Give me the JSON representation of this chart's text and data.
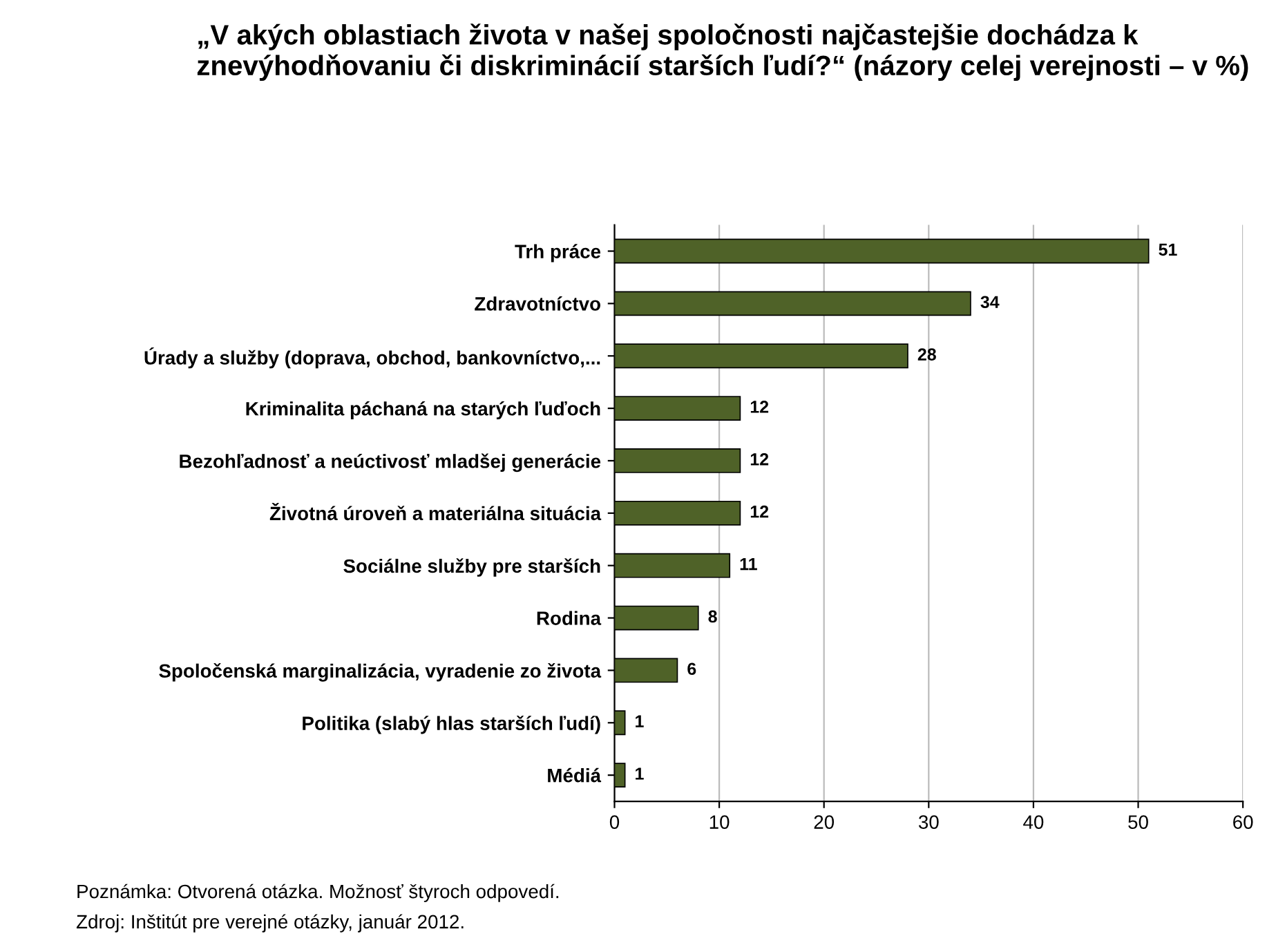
{
  "chart_data": {
    "type": "bar",
    "orientation": "horizontal",
    "title": "„V akých oblastiach života v našej spoločnosti najčastejšie dochádza k znevýhodňovaniu či diskriminácií starších ľudí?“ (názory celej verejnosti – v %)",
    "categories": [
      "Trh práce",
      "Zdravotníctvo",
      "Úrady a služby (doprava, obchod, bankovníctvo,...",
      "Kriminalita páchaná na starých ľuďoch",
      "Bezohľadnosť a neúctivosť mladšej generácie",
      "Životná úroveň a materiálna situácia",
      "Sociálne služby pre starších",
      "Rodina",
      "Spoločenská marginalizácia, vyradenie zo života",
      "Politika (slabý hlas starších ľudí)",
      "Médiá"
    ],
    "values": [
      51,
      34,
      28,
      12,
      12,
      12,
      11,
      8,
      6,
      1,
      1
    ],
    "color": "#4f6228",
    "xlim": [
      0,
      60
    ],
    "xticks": [
      0,
      10,
      20,
      30,
      40,
      50,
      60
    ],
    "grid": "x",
    "data_labels": true,
    "legend": false,
    "annotations": [
      "Poznámka: Otvorená otázka. Možnosť štyroch odpovedí.",
      "Zdroj: Inštitút pre verejné otázky, január 2012."
    ]
  }
}
